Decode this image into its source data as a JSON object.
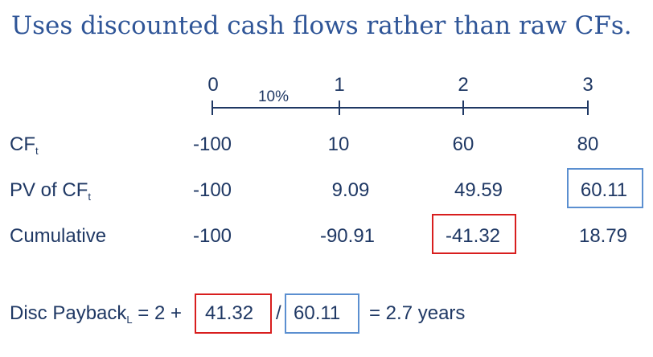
{
  "title": "Uses discounted cash flows rather than raw CFs.",
  "timeline": {
    "periods": [
      "0",
      "1",
      "2",
      "3"
    ],
    "rate": "10%"
  },
  "rows": {
    "cf": {
      "label": "CF",
      "label_sub": "t",
      "values": [
        "-100",
        "10",
        "60",
        "80"
      ]
    },
    "pv": {
      "label": "PV of CF",
      "label_sub": "t",
      "values": [
        "-100",
        "9.09",
        "49.59",
        "60.11"
      ]
    },
    "cumulative": {
      "label": "Cumulative",
      "values": [
        "-100",
        "-90.91",
        "-41.32",
        "18.79"
      ]
    }
  },
  "formula": {
    "prefix": "Disc Payback",
    "prefix_sub": "L",
    "plus_part": " = 2 + ",
    "numerator": "41.32",
    "slash": "/",
    "denominator": "60.11",
    "result": "= 2.7 years"
  },
  "colors": {
    "title": "#2f5597",
    "text": "#1f3864",
    "highlight_red": "#d81e1e",
    "highlight_blue": "#5b8fd0"
  }
}
